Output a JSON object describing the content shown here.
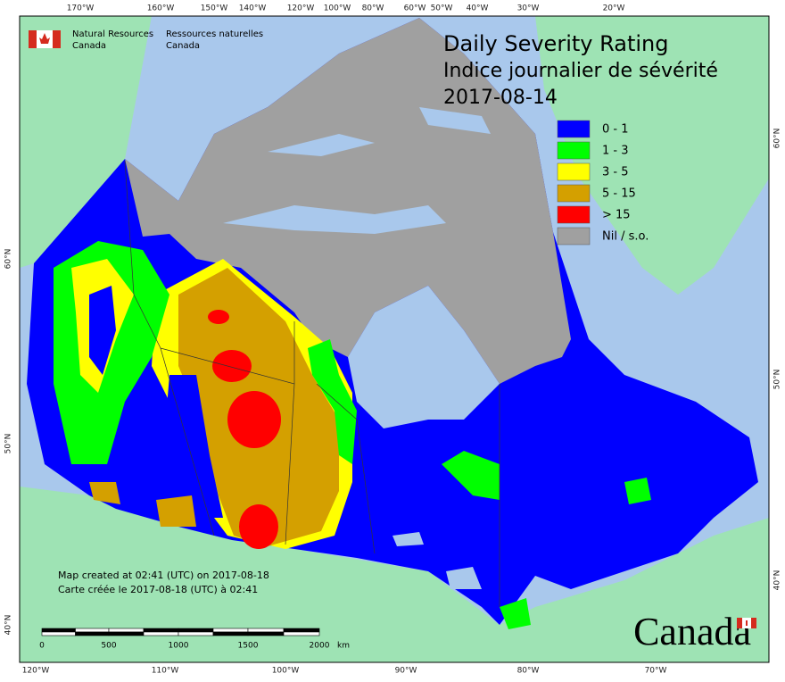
{
  "header": {
    "org_en": [
      "Natural Resources",
      "Canada"
    ],
    "org_fr": [
      "Ressources naturelles",
      "Canada"
    ]
  },
  "title": [
    "Daily Severity Rating",
    "Indice journalier de sévérité",
    "2017-08-14"
  ],
  "legend": [
    {
      "label": "0 - 1",
      "color": "#0000ff"
    },
    {
      "label": "1 - 3",
      "color": "#00ff00"
    },
    {
      "label": "3 - 5",
      "color": "#ffff00"
    },
    {
      "label": "5 - 15",
      "color": "#d4a000"
    },
    {
      "label": "> 15",
      "color": "#ff0000"
    },
    {
      "label": "Nil / s.o.",
      "color": "#a0a0a0"
    }
  ],
  "graticule": {
    "top": [
      "170°W",
      "160°W",
      "150°W",
      "140°W",
      "120°W",
      "100°W",
      "80°W",
      "60°W",
      "50°W",
      "40°W",
      "30°W",
      "20°W"
    ],
    "bottom": [
      "120°W",
      "110°W",
      "100°W",
      "90°W",
      "80°W",
      "70°W"
    ],
    "left": [
      "60°N",
      "50°N",
      "40°N"
    ],
    "right": [
      "60°N",
      "50°N",
      "40°N"
    ]
  },
  "notes": [
    "Map created at 02:41 (UTC) on 2017-08-18",
    "Carte créée le 2017-08-18 (UTC) à 02:41"
  ],
  "scale_bar": {
    "labels": [
      "0",
      "500",
      "1000",
      "1500",
      "2000"
    ],
    "unit": "km"
  },
  "wordmark": "Canada"
}
